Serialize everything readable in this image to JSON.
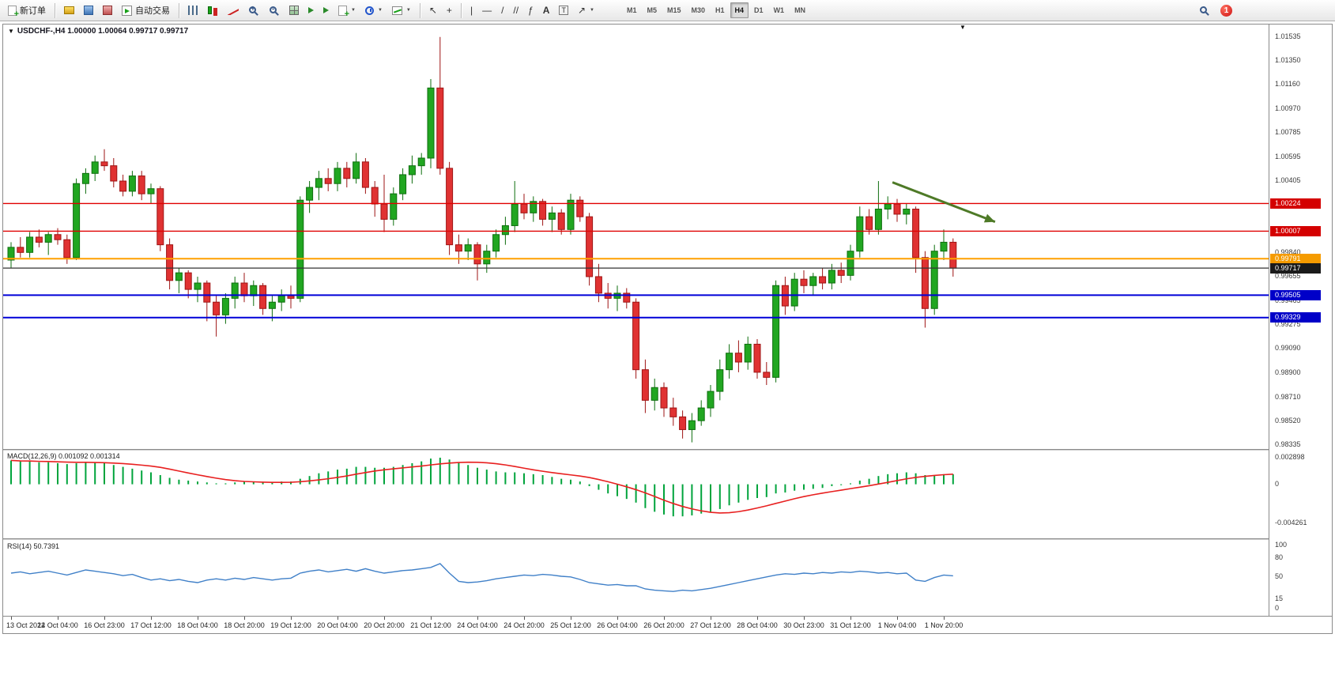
{
  "toolbar": {
    "new_order_label": "新订单",
    "auto_trading_label": "自动交易",
    "timeframes": [
      "M1",
      "M5",
      "M15",
      "M30",
      "H1",
      "H4",
      "D1",
      "W1",
      "MN"
    ],
    "active_timeframe": "H4",
    "notification_count": "1"
  },
  "window_title": {
    "text": "USDCHF-,H4  1.00000 1.00064 0.99717 0.99717"
  },
  "time_axis": {
    "labels": [
      "13 Oct 2022",
      "14 Oct 04:00",
      "16 Oct 23:00",
      "17 Oct 12:00",
      "18 Oct 04:00",
      "18 Oct 20:00",
      "19 Oct 12:00",
      "20 Oct 04:00",
      "20 Oct 20:00",
      "21 Oct 12:00",
      "24 Oct 04:00",
      "24 Oct 20:00",
      "25 Oct 12:00",
      "26 Oct 04:00",
      "26 Oct 20:00",
      "27 Oct 12:00",
      "28 Oct 04:00",
      "30 Oct 23:00",
      "31 Oct 12:00",
      "1 Nov 04:00",
      "1 Nov 20:00"
    ]
  },
  "chart_data": [
    {
      "type": "candlestick",
      "symbol": "USDCHF",
      "timeframe": "H4",
      "ohlc_display": "1.00000 1.00064 0.99717 0.99717",
      "ylim": [
        0.98335,
        1.01535
      ],
      "up_color": "#21A621",
      "down_color": "#E03232",
      "up_border": "#0E6E0E",
      "down_border": "#9E1414",
      "price_axis_labels": [
        "1.01535",
        "1.01350",
        "1.01160",
        "1.00970",
        "1.00785",
        "1.00595",
        "1.00405",
        "0.99840",
        "0.99655",
        "0.99465",
        "0.99275",
        "0.99090",
        "0.98900",
        "0.98710",
        "0.98520",
        "0.98335"
      ],
      "hlines": [
        {
          "price": 1.00224,
          "label": "1.00224",
          "color": "#E00000",
          "width": 1.4,
          "badge_color": "#D40000"
        },
        {
          "price": 1.00007,
          "label": "1.00007",
          "color": "#E00000",
          "width": 1.4,
          "badge_color": "#D40000"
        },
        {
          "price": 0.99791,
          "label": "0.99791",
          "color": "#FFA000",
          "width": 2,
          "badge_color": "#F59B00"
        },
        {
          "price": 0.99717,
          "label": "0.99717",
          "color": "#333333",
          "width": 1.2,
          "badge_color": "#1A1A1A"
        },
        {
          "price": 0.99505,
          "label": "0.99505",
          "color": "#0000D8",
          "width": 2,
          "badge_color": "#0000C8"
        },
        {
          "price": 0.99329,
          "label": "0.99329",
          "color": "#0000D8",
          "width": 2,
          "badge_color": "#0000C8"
        }
      ],
      "annotation_arrow": {
        "start_index": 94.5,
        "start_price": 1.0039,
        "end_index": 105.5,
        "end_price": 1.0008,
        "color": "#4E7A27",
        "width": 3
      },
      "candles": [
        [
          0.9978,
          0.9992,
          0.9972,
          0.9988
        ],
        [
          0.9988,
          0.9996,
          0.998,
          0.9984
        ],
        [
          0.9984,
          1.0,
          0.998,
          0.9996
        ],
        [
          0.9996,
          1.0002,
          0.9988,
          0.9992
        ],
        [
          0.9992,
          1.0,
          0.9982,
          0.9998
        ],
        [
          0.9998,
          1.0003,
          0.999,
          0.9994
        ],
        [
          0.9994,
          0.9998,
          0.9975,
          0.998
        ],
        [
          0.998,
          1.0042,
          0.9978,
          1.0038
        ],
        [
          1.0038,
          1.005,
          1.003,
          1.0046
        ],
        [
          1.0046,
          1.006,
          1.004,
          1.0055
        ],
        [
          1.0055,
          1.0065,
          1.0048,
          1.0052
        ],
        [
          1.0052,
          1.0058,
          1.0035,
          1.004
        ],
        [
          1.004,
          1.0045,
          1.0028,
          1.0032
        ],
        [
          1.0032,
          1.0048,
          1.0028,
          1.0044
        ],
        [
          1.0044,
          1.0048,
          1.0025,
          1.003
        ],
        [
          1.003,
          1.0038,
          1.0022,
          1.0034
        ],
        [
          1.0034,
          1.0036,
          0.9985,
          0.999
        ],
        [
          0.999,
          0.9995,
          0.9955,
          0.9962
        ],
        [
          0.9962,
          0.9972,
          0.9952,
          0.9968
        ],
        [
          0.9968,
          0.997,
          0.9948,
          0.9955
        ],
        [
          0.9955,
          0.9965,
          0.9945,
          0.996
        ],
        [
          0.996,
          0.9962,
          0.993,
          0.9945
        ],
        [
          0.9945,
          0.995,
          0.9918,
          0.9935
        ],
        [
          0.9935,
          0.9952,
          0.9928,
          0.9948
        ],
        [
          0.9948,
          0.9965,
          0.994,
          0.996
        ],
        [
          0.996,
          0.9968,
          0.9945,
          0.995
        ],
        [
          0.995,
          0.9962,
          0.9942,
          0.9958
        ],
        [
          0.9958,
          0.996,
          0.9935,
          0.994
        ],
        [
          0.994,
          0.995,
          0.993,
          0.9945
        ],
        [
          0.9945,
          0.9955,
          0.9938,
          0.995
        ],
        [
          0.995,
          0.9958,
          0.994,
          0.9948
        ],
        [
          0.9948,
          1.0028,
          0.9945,
          1.0025
        ],
        [
          1.0025,
          1.004,
          1.0015,
          1.0035
        ],
        [
          1.0035,
          1.0048,
          1.0025,
          1.0042
        ],
        [
          1.0042,
          1.005,
          1.0032,
          1.0038
        ],
        [
          1.0038,
          1.0055,
          1.0032,
          1.005
        ],
        [
          1.005,
          1.0055,
          1.0035,
          1.0042
        ],
        [
          1.0042,
          1.0062,
          1.0038,
          1.0055
        ],
        [
          1.0055,
          1.0058,
          1.003,
          1.0035
        ],
        [
          1.0035,
          1.004,
          1.0012,
          1.0022
        ],
        [
          1.0022,
          1.0045,
          1.0,
          1.001
        ],
        [
          1.001,
          1.0035,
          1.0005,
          1.003
        ],
        [
          1.003,
          1.005,
          1.0025,
          1.0045
        ],
        [
          1.0045,
          1.006,
          1.0038,
          1.0052
        ],
        [
          1.0052,
          1.0062,
          1.0045,
          1.0058
        ],
        [
          1.0058,
          1.012,
          1.005,
          1.0113
        ],
        [
          1.0113,
          1.0153,
          1.0045,
          1.005
        ],
        [
          1.005,
          1.0055,
          0.9982,
          0.999
        ],
        [
          0.999,
          0.9998,
          0.9975,
          0.9985
        ],
        [
          0.9985,
          0.9995,
          0.9978,
          0.999
        ],
        [
          0.999,
          0.9992,
          0.9962,
          0.9975
        ],
        [
          0.9975,
          0.999,
          0.9968,
          0.9985
        ],
        [
          0.9985,
          1.0002,
          0.998,
          0.9998
        ],
        [
          0.9998,
          1.0012,
          0.999,
          1.0005
        ],
        [
          1.0005,
          1.004,
          1.0,
          1.0022
        ],
        [
          1.0022,
          1.003,
          1.001,
          1.0015
        ],
        [
          1.0015,
          1.0028,
          1.0008,
          1.0024
        ],
        [
          1.0024,
          1.0026,
          1.0005,
          1.001
        ],
        [
          1.001,
          1.002,
          1.0,
          1.0015
        ],
        [
          1.0015,
          1.0018,
          0.9998,
          1.0002
        ],
        [
          1.0002,
          1.003,
          0.9998,
          1.0025
        ],
        [
          1.0025,
          1.0028,
          1.0008,
          1.0012
        ],
        [
          1.0012,
          1.0015,
          0.9958,
          0.9965
        ],
        [
          0.9965,
          0.9975,
          0.9945,
          0.9952
        ],
        [
          0.9952,
          0.996,
          0.994,
          0.9948
        ],
        [
          0.9948,
          0.9958,
          0.9938,
          0.9952
        ],
        [
          0.9952,
          0.9956,
          0.994,
          0.9945
        ],
        [
          0.9945,
          0.9948,
          0.9885,
          0.9892
        ],
        [
          0.9892,
          0.99,
          0.9858,
          0.9868
        ],
        [
          0.9868,
          0.9885,
          0.986,
          0.9878
        ],
        [
          0.9878,
          0.9882,
          0.9855,
          0.9862
        ],
        [
          0.9862,
          0.987,
          0.9848,
          0.9855
        ],
        [
          0.9855,
          0.986,
          0.9838,
          0.9845
        ],
        [
          0.9845,
          0.9858,
          0.9835,
          0.9852
        ],
        [
          0.9852,
          0.9868,
          0.9848,
          0.9862
        ],
        [
          0.9862,
          0.988,
          0.9855,
          0.9875
        ],
        [
          0.9875,
          0.99,
          0.9868,
          0.9892
        ],
        [
          0.9892,
          0.9912,
          0.9885,
          0.9905
        ],
        [
          0.9905,
          0.9915,
          0.989,
          0.9898
        ],
        [
          0.9898,
          0.9918,
          0.9892,
          0.9912
        ],
        [
          0.9912,
          0.9916,
          0.9885,
          0.989
        ],
        [
          0.989,
          0.9898,
          0.988,
          0.9886
        ],
        [
          0.9886,
          0.9962,
          0.9882,
          0.9958
        ],
        [
          0.9958,
          0.9965,
          0.9935,
          0.9942
        ],
        [
          0.9942,
          0.9968,
          0.9938,
          0.9963
        ],
        [
          0.9963,
          0.997,
          0.9952,
          0.9958
        ],
        [
          0.9958,
          0.9968,
          0.995,
          0.9965
        ],
        [
          0.9965,
          0.9972,
          0.9955,
          0.996
        ],
        [
          0.996,
          0.9975,
          0.9955,
          0.997
        ],
        [
          0.997,
          0.9976,
          0.996,
          0.9966
        ],
        [
          0.9966,
          0.999,
          0.9962,
          0.9985
        ],
        [
          0.9985,
          1.002,
          0.998,
          1.0012
        ],
        [
          1.0012,
          1.0018,
          0.9998,
          1.0002
        ],
        [
          1.0002,
          1.004,
          0.9998,
          1.0018
        ],
        [
          1.0018,
          1.0028,
          1.001,
          1.0022
        ],
        [
          1.0022,
          1.0026,
          1.0008,
          1.0014
        ],
        [
          1.0014,
          1.0022,
          1.0006,
          1.0018
        ],
        [
          1.0018,
          1.002,
          0.9968,
          0.998
        ],
        [
          0.998,
          0.9985,
          0.9925,
          0.994
        ],
        [
          0.994,
          0.999,
          0.9935,
          0.9985
        ],
        [
          0.9985,
          1.0002,
          0.9978,
          0.9992
        ],
        [
          0.9992,
          0.9995,
          0.9965,
          0.99717
        ]
      ]
    },
    {
      "type": "bar",
      "name": "MACD(12,26,9)",
      "label": "MACD(12,26,9) 0.001092 0.001314",
      "value": "0.001092",
      "signal_value": "0.001314",
      "ylim": [
        -0.004261,
        0.002898
      ],
      "axis_labels": [
        "0.002898",
        "0",
        "-0.004261"
      ],
      "bar_color": "#00A43C",
      "signal_color": "#E82020",
      "signal_period": 9,
      "values": [
        0.0026,
        0.0025,
        0.0025,
        0.0024,
        0.0024,
        0.0023,
        0.0022,
        0.0023,
        0.0024,
        0.0024,
        0.0023,
        0.0021,
        0.0019,
        0.0017,
        0.0015,
        0.0013,
        0.001,
        0.0007,
        0.0005,
        0.0004,
        0.0003,
        0.0002,
        0.0001,
        0.0001,
        0.0002,
        0.0003,
        0.0003,
        0.0002,
        0.0002,
        0.0003,
        0.0003,
        0.0006,
        0.0009,
        0.0012,
        0.0014,
        0.0016,
        0.0017,
        0.0019,
        0.0019,
        0.0018,
        0.0018,
        0.0019,
        0.0021,
        0.0023,
        0.0025,
        0.0028,
        0.0029,
        0.0027,
        0.0024,
        0.0021,
        0.0018,
        0.0016,
        0.0014,
        0.0013,
        0.0013,
        0.0012,
        0.0011,
        0.001,
        0.0008,
        0.0006,
        0.0005,
        0.0003,
        -0.0002,
        -0.0006,
        -0.001,
        -0.0013,
        -0.0016,
        -0.002,
        -0.0026,
        -0.003,
        -0.0033,
        -0.0035,
        -0.0035,
        -0.0034,
        -0.0032,
        -0.003,
        -0.0027,
        -0.0023,
        -0.002,
        -0.0017,
        -0.0015,
        -0.0014,
        -0.001,
        -0.0009,
        -0.0007,
        -0.0006,
        -0.0005,
        -0.0004,
        -0.0002,
        -0.0001,
        0.0001,
        0.0004,
        0.0006,
        0.0009,
        0.0011,
        0.0012,
        0.0013,
        0.0012,
        0.001,
        0.001,
        0.0011,
        0.001092
      ]
    },
    {
      "type": "line",
      "name": "RSI(14)",
      "label": "RSI(14) 50.7391",
      "value": "50.7391",
      "ylim": [
        0,
        100
      ],
      "axis_labels": [
        "100",
        "80",
        "50",
        "15",
        "0"
      ],
      "line_color": "#4080C8",
      "values": [
        55,
        57,
        54,
        56,
        58,
        55,
        52,
        56,
        60,
        58,
        56,
        54,
        51,
        53,
        48,
        44,
        46,
        43,
        45,
        42,
        40,
        44,
        46,
        44,
        47,
        45,
        48,
        46,
        44,
        46,
        47,
        55,
        58,
        60,
        57,
        59,
        61,
        58,
        62,
        58,
        55,
        57,
        59,
        60,
        62,
        64,
        70,
        55,
        42,
        40,
        41,
        43,
        46,
        48,
        50,
        52,
        51,
        53,
        52,
        50,
        49,
        45,
        40,
        38,
        36,
        37,
        35,
        35,
        30,
        28,
        27,
        26,
        28,
        27,
        29,
        31,
        34,
        37,
        40,
        43,
        46,
        49,
        52,
        54,
        53,
        55,
        54,
        56,
        55,
        57,
        56,
        58,
        57,
        55,
        56,
        54,
        55,
        44,
        42,
        48,
        52,
        50.7391
      ]
    }
  ]
}
